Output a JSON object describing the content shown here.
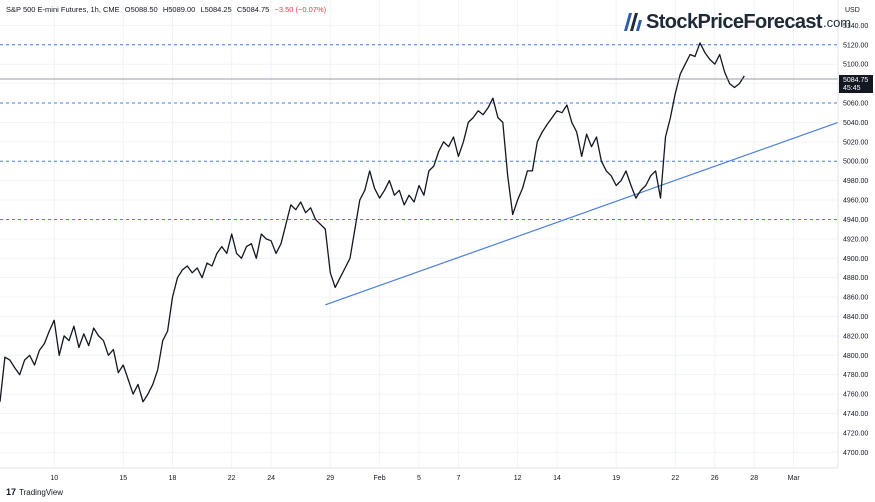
{
  "header": {
    "symbol": "S&P 500 E-mini Futures, 1h, CME",
    "open": "O5088.50",
    "high": "H5089.00",
    "low": "L5084.25",
    "close": "C5084.75",
    "change": "−3.50 (−0.07%)"
  },
  "brand": {
    "name": "StockPriceForecast",
    "tld": ".com"
  },
  "footer": {
    "tradingview": "TradingView"
  },
  "colors": {
    "price_line": "#131722",
    "trend_line": "#4a7fd8",
    "level_line": "#4a7fd8",
    "price_tag_bg": "#131722",
    "grid": "#f0f3fa"
  },
  "chart_data": {
    "type": "line",
    "title": "",
    "xlabel": "",
    "ylabel": "",
    "y_unit_label": "USD",
    "ylim": [
      4690,
      5160
    ],
    "y_ticks": [
      4700,
      4720,
      4740,
      4760,
      4780,
      4800,
      4820,
      4840,
      4860,
      4880,
      4900,
      4920,
      4940,
      4960,
      4980,
      5000,
      5020,
      5040,
      5060,
      5080,
      5100,
      5120,
      5140
    ],
    "x_tick_labels": [
      "10",
      "15",
      "18",
      "22",
      "24",
      "29",
      "Feb",
      "5",
      "7",
      "12",
      "14",
      "19",
      "22",
      "26",
      "28",
      "Mar"
    ],
    "x_tick_positions": [
      5.5,
      12.5,
      17.5,
      23.5,
      27.5,
      33.5,
      38.5,
      42.5,
      46.5,
      52.5,
      56.5,
      62.5,
      68.5,
      72.5,
      76.5,
      80.5
    ],
    "x_range": [
      0,
      85
    ],
    "current_price": 5084.75,
    "current_price_label": "5084.75",
    "countdown_label": "45:45",
    "horizontal_levels": [
      5120,
      5060,
      5000,
      4940
    ],
    "trend_line": {
      "start": [
        33,
        4852
      ],
      "end": [
        85,
        5040
      ]
    },
    "series": [
      {
        "x": [
          0,
          0.5,
          1,
          1.5,
          2,
          2.5,
          3,
          3.5,
          4,
          4.5,
          5,
          5.5,
          6,
          6.5,
          7,
          7.5,
          8,
          8.5,
          9,
          9.5,
          10,
          10.5,
          11,
          11.5,
          12,
          12.5,
          13,
          13.5,
          14,
          14.5,
          15,
          15.5,
          16,
          16.5,
          17,
          17.5,
          18,
          18.5,
          19,
          19.5,
          20,
          20.5,
          21,
          21.5,
          22,
          22.5,
          23,
          23.5,
          24,
          24.5,
          25,
          25.5,
          26,
          26.5,
          27,
          27.5,
          28,
          28.5,
          29,
          29.5,
          30,
          30.5,
          31,
          31.5,
          32,
          32.5,
          33,
          33.5,
          34,
          34.5,
          35,
          35.5,
          36,
          36.5,
          37,
          37.5,
          38,
          38.5,
          39,
          39.5,
          40,
          40.5,
          41,
          41.5,
          42,
          42.5,
          43,
          43.5,
          44,
          44.5,
          45,
          45.5,
          46,
          46.5,
          47,
          47.5,
          48,
          48.5,
          49,
          49.5,
          50,
          50.5,
          51,
          51.5,
          52,
          52.5,
          53,
          53.5,
          54,
          54.5,
          55,
          55.5,
          56,
          56.5,
          57,
          57.5,
          58,
          58.5,
          59,
          59.5,
          60,
          60.5,
          61,
          61.5,
          62,
          62.5,
          63,
          63.5,
          64,
          64.5,
          65,
          65.5,
          66,
          66.5,
          67,
          67.5,
          68,
          68.5,
          69,
          69.5,
          70,
          70.5,
          71,
          71.5,
          72,
          72.5,
          73,
          73.5,
          74,
          74.5,
          75,
          75.5
        ],
        "values": [
          4752,
          4798,
          4795,
          4787,
          4780,
          4795,
          4800,
          4790,
          4805,
          4812,
          4825,
          4836,
          4800,
          4820,
          4815,
          4830,
          4808,
          4822,
          4810,
          4828,
          4820,
          4815,
          4800,
          4806,
          4782,
          4790,
          4775,
          4760,
          4770,
          4752,
          4760,
          4770,
          4785,
          4815,
          4825,
          4860,
          4880,
          4888,
          4892,
          4885,
          4890,
          4880,
          4895,
          4892,
          4905,
          4912,
          4905,
          4925,
          4905,
          4900,
          4912,
          4915,
          4900,
          4925,
          4920,
          4918,
          4905,
          4915,
          4935,
          4955,
          4950,
          4958,
          4947,
          4952,
          4940,
          4935,
          4930,
          4885,
          4870,
          4880,
          4890,
          4900,
          4930,
          4960,
          4970,
          4990,
          4972,
          4962,
          4970,
          4980,
          4965,
          4970,
          4955,
          4965,
          4958,
          4975,
          4965,
          4990,
          4995,
          5010,
          5020,
          5015,
          5025,
          5005,
          5020,
          5040,
          5045,
          5052,
          5048,
          5055,
          5065,
          5045,
          5040,
          4985,
          4945,
          4960,
          4972,
          4990,
          4990,
          5020,
          5030,
          5038,
          5045,
          5052,
          5050,
          5058,
          5040,
          5030,
          5005,
          5028,
          5015,
          5025,
          5000,
          4990,
          4985,
          4975,
          4980,
          4990,
          4975,
          4962,
          4970,
          4975,
          4985,
          4990,
          4962,
          5025,
          5045,
          5070,
          5090,
          5100,
          5110,
          5108,
          5122,
          5112,
          5105,
          5100,
          5110,
          5092,
          5080,
          5076,
          5080,
          5088
        ]
      }
    ]
  }
}
